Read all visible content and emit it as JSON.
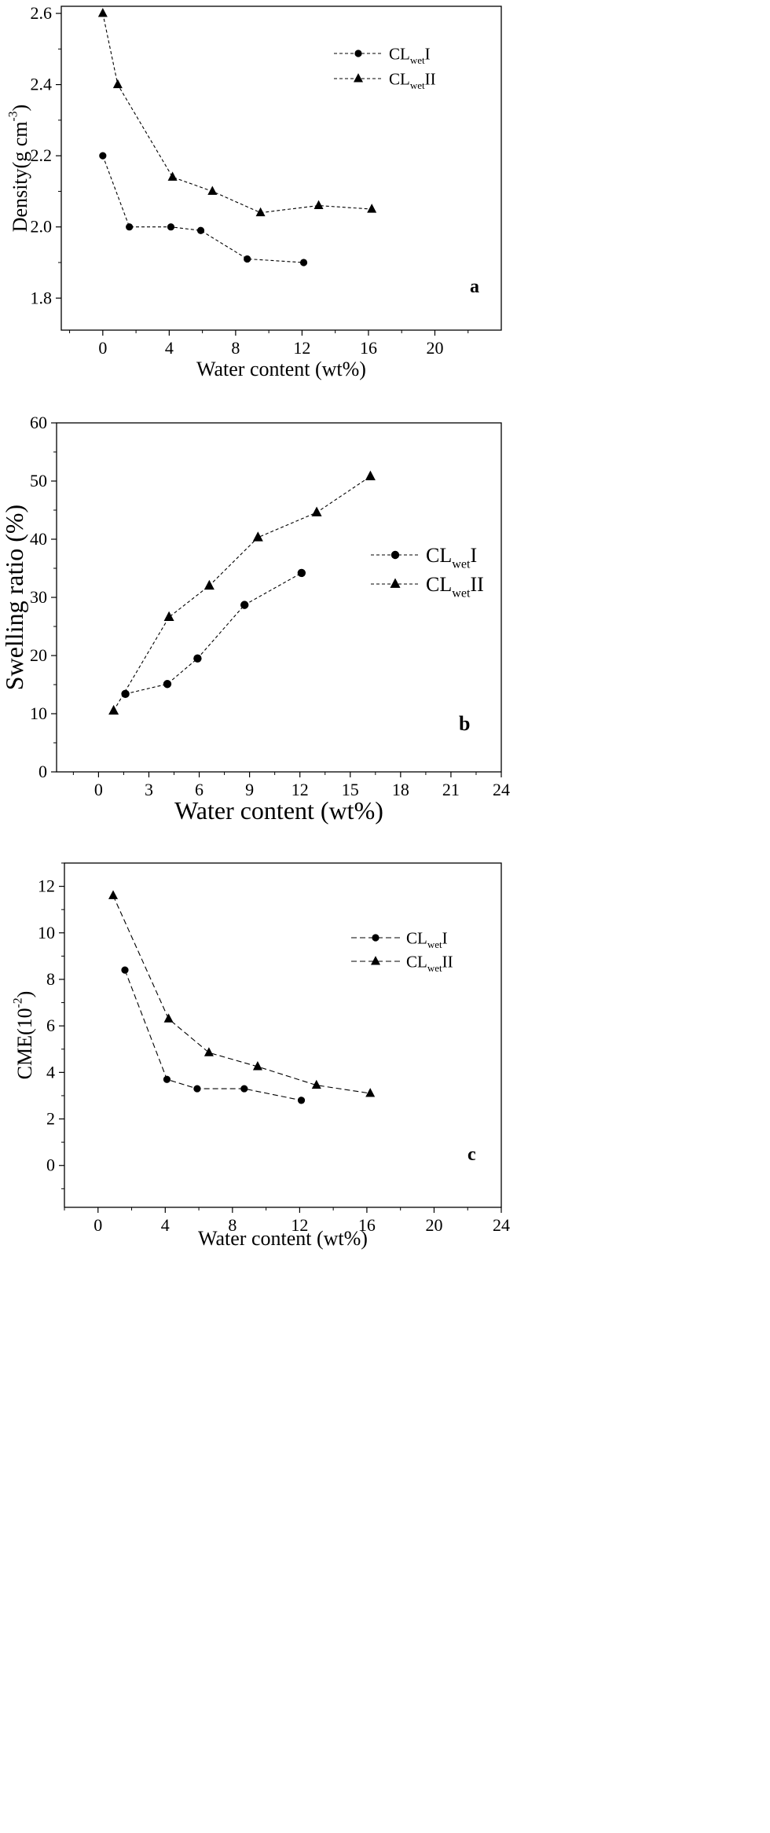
{
  "chart_data": [
    {
      "type": "line",
      "panel_label": "a",
      "xlabel": "Water content (wt%)",
      "ylabel": "Density(g cm",
      "ylabel_sup": "-3",
      "ylabel_close": ")",
      "xlim": [
        -2.5,
        24
      ],
      "ylim": [
        1.71,
        2.62
      ],
      "xticks": [
        0,
        4,
        8,
        12,
        16,
        20
      ],
      "yticks": [
        1.8,
        2.0,
        2.2,
        2.4,
        2.6
      ],
      "ytick_labels": [
        "1.8",
        "2.0",
        "2.2",
        "2.4",
        "2.6"
      ],
      "dash": "4,3",
      "grid": false,
      "legend_position": "top-right",
      "series": [
        {
          "legend_base": "CL",
          "legend_sub": "wet",
          "legend_suffix": "I",
          "marker": "circle",
          "x": [
            0,
            1.6,
            4.1,
            5.9,
            8.7,
            12.1
          ],
          "y": [
            2.2,
            2.0,
            2.0,
            1.99,
            1.91,
            1.9
          ]
        },
        {
          "legend_base": "CL",
          "legend_sub": "wet",
          "legend_suffix": "II",
          "marker": "triangle",
          "x": [
            0,
            0.9,
            4.2,
            6.6,
            9.5,
            13.0,
            16.2
          ],
          "y": [
            2.6,
            2.4,
            2.14,
            2.1,
            2.04,
            2.06,
            2.05
          ]
        }
      ]
    },
    {
      "type": "line",
      "panel_label": "b",
      "xlabel": "Water content (wt%)",
      "ylabel": "Swelling ratio (%)",
      "xlim": [
        -2.5,
        24
      ],
      "ylim": [
        0,
        60
      ],
      "xticks": [
        0,
        3,
        6,
        9,
        12,
        15,
        18,
        21,
        24
      ],
      "yticks": [
        0,
        10,
        20,
        30,
        40,
        50,
        60
      ],
      "dash": "4,3",
      "grid": false,
      "legend_position": "middle-right",
      "series": [
        {
          "legend_base": "CL",
          "legend_sub": "wet",
          "legend_suffix": "I",
          "marker": "circle",
          "x": [
            1.6,
            4.1,
            5.9,
            8.7,
            12.1
          ],
          "y": [
            13.4,
            15.1,
            19.5,
            28.7,
            34.2
          ]
        },
        {
          "legend_base": "CL",
          "legend_sub": "wet",
          "legend_suffix": "II",
          "marker": "triangle",
          "x": [
            0.9,
            4.2,
            6.6,
            9.5,
            13.0,
            16.2
          ],
          "y": [
            10.5,
            26.6,
            32.0,
            40.3,
            44.6,
            50.8
          ]
        }
      ]
    },
    {
      "type": "line",
      "panel_label": "c",
      "xlabel": "Water content (wt%)",
      "ylabel": "CME(10",
      "ylabel_sup": "-2",
      "ylabel_close": ")",
      "xlim": [
        -2,
        24
      ],
      "ylim": [
        -1.8,
        13
      ],
      "xticks": [
        0,
        4,
        8,
        12,
        16,
        20,
        24
      ],
      "yticks": [
        0,
        2,
        4,
        6,
        8,
        10,
        12
      ],
      "dash": "7,4",
      "grid": false,
      "legend_position": "top-right",
      "series": [
        {
          "legend_base": "CL",
          "legend_sub": "wet",
          "legend_suffix": "I",
          "marker": "circle",
          "x": [
            1.6,
            4.1,
            5.9,
            8.7,
            12.1
          ],
          "y": [
            8.4,
            3.7,
            3.3,
            3.3,
            2.8
          ]
        },
        {
          "legend_base": "CL",
          "legend_sub": "wet",
          "legend_suffix": "II",
          "marker": "triangle",
          "x": [
            0.9,
            4.2,
            6.6,
            9.5,
            13.0,
            16.2
          ],
          "y": [
            11.6,
            6.3,
            4.85,
            4.25,
            3.45,
            3.1
          ]
        }
      ]
    }
  ]
}
